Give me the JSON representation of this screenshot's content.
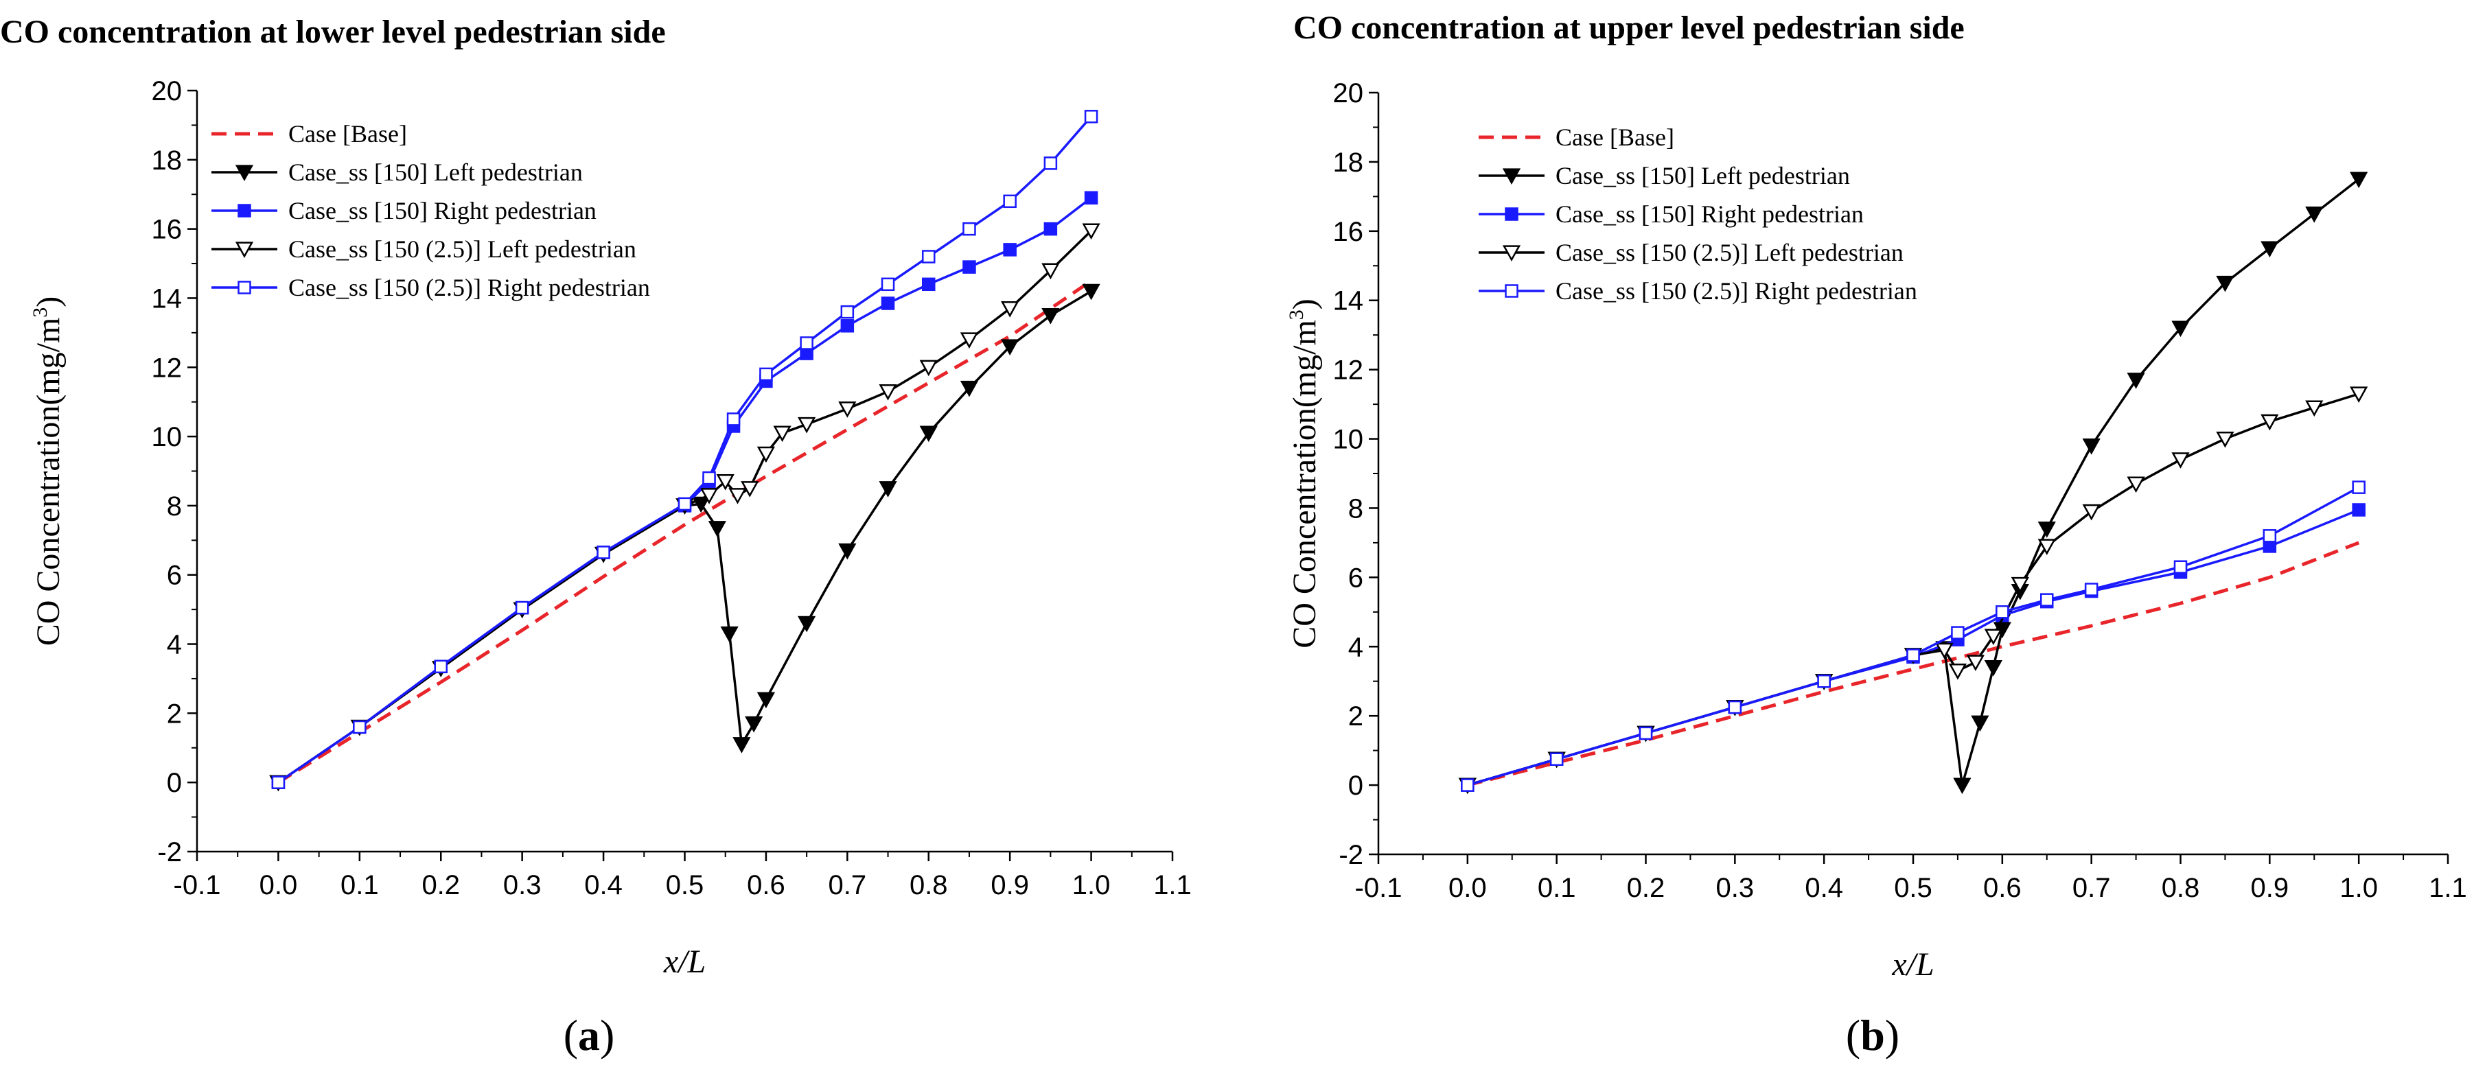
{
  "colors": {
    "base": "#e8252a",
    "black": "#000000",
    "blue": "#1a1aff"
  },
  "chart_data": [
    {
      "id": "a",
      "type": "line",
      "title": "CO concentration at lower level pedestrian side",
      "xlabel": "x/L",
      "ylabel": "CO Concentration(mg/m",
      "ylabel_sup": "3",
      "ylabel_end": ")",
      "caption_open": "(",
      "caption": "a",
      "caption_close": ")",
      "xlim": [
        -0.1,
        1.1
      ],
      "ylim": [
        -2,
        20
      ],
      "xticks": [
        "-0.1",
        "0.0",
        "0.1",
        "0.2",
        "0.3",
        "0.4",
        "0.5",
        "0.6",
        "0.7",
        "0.8",
        "0.9",
        "1.0",
        "1.1"
      ],
      "yticks": [
        "-2",
        "0",
        "2",
        "4",
        "6",
        "8",
        "10",
        "12",
        "14",
        "16",
        "18",
        "20"
      ],
      "legend": "top-left",
      "series": [
        {
          "name": "Case [Base]",
          "color": "base",
          "style": "dashed",
          "marker": "none",
          "points": [
            [
              0,
              0
            ],
            [
              0.1,
              1.45
            ],
            [
              0.2,
              2.9
            ],
            [
              0.3,
              4.4
            ],
            [
              0.4,
              5.95
            ],
            [
              0.5,
              7.45
            ],
            [
              0.6,
              8.85
            ],
            [
              0.7,
              10.2
            ],
            [
              0.8,
              11.55
            ],
            [
              0.9,
              12.9
            ],
            [
              1.0,
              14.5
            ]
          ]
        },
        {
          "name": "Case_ss [150] Left pedestrian",
          "color": "black",
          "style": "solid",
          "marker": "tri-down-filled",
          "points": [
            [
              0,
              0
            ],
            [
              0.1,
              1.6
            ],
            [
              0.2,
              3.3
            ],
            [
              0.3,
              5.0
            ],
            [
              0.4,
              6.6
            ],
            [
              0.5,
              8.0
            ],
            [
              0.52,
              8.05
            ],
            [
              0.54,
              7.35
            ],
            [
              0.555,
              4.3
            ],
            [
              0.57,
              1.1
            ],
            [
              0.585,
              1.7
            ],
            [
              0.6,
              2.4
            ],
            [
              0.65,
              4.6
            ],
            [
              0.7,
              6.7
            ],
            [
              0.75,
              8.5
            ],
            [
              0.8,
              10.1
            ],
            [
              0.85,
              11.4
            ],
            [
              0.9,
              12.6
            ],
            [
              0.95,
              13.5
            ],
            [
              1.0,
              14.2
            ]
          ]
        },
        {
          "name": "Case_ss [150] Right pedestrian",
          "color": "blue",
          "style": "solid",
          "marker": "square-filled",
          "points": [
            [
              0,
              0
            ],
            [
              0.1,
              1.6
            ],
            [
              0.2,
              3.35
            ],
            [
              0.3,
              5.05
            ],
            [
              0.4,
              6.65
            ],
            [
              0.5,
              8.0
            ],
            [
              0.53,
              8.7
            ],
            [
              0.56,
              10.3
            ],
            [
              0.6,
              11.6
            ],
            [
              0.65,
              12.4
            ],
            [
              0.7,
              13.2
            ],
            [
              0.75,
              13.85
            ],
            [
              0.8,
              14.4
            ],
            [
              0.85,
              14.9
            ],
            [
              0.9,
              15.4
            ],
            [
              0.95,
              16.0
            ],
            [
              1.0,
              16.9
            ]
          ]
        },
        {
          "name": "Case_ss [150 (2.5)] Left pedestrian",
          "color": "black",
          "style": "solid",
          "marker": "tri-down-open",
          "points": [
            [
              0,
              0
            ],
            [
              0.1,
              1.6
            ],
            [
              0.2,
              3.3
            ],
            [
              0.3,
              5.0
            ],
            [
              0.4,
              6.6
            ],
            [
              0.5,
              8.0
            ],
            [
              0.53,
              8.3
            ],
            [
              0.55,
              8.7
            ],
            [
              0.565,
              8.3
            ],
            [
              0.58,
              8.5
            ],
            [
              0.6,
              9.5
            ],
            [
              0.62,
              10.1
            ],
            [
              0.65,
              10.35
            ],
            [
              0.7,
              10.8
            ],
            [
              0.75,
              11.3
            ],
            [
              0.8,
              12.0
            ],
            [
              0.85,
              12.8
            ],
            [
              0.9,
              13.7
            ],
            [
              0.95,
              14.8
            ],
            [
              1.0,
              15.95
            ]
          ]
        },
        {
          "name": "Case_ss [150 (2.5)] Right pedestrian",
          "color": "blue",
          "style": "solid",
          "marker": "square-open",
          "points": [
            [
              0,
              0
            ],
            [
              0.1,
              1.6
            ],
            [
              0.2,
              3.35
            ],
            [
              0.3,
              5.05
            ],
            [
              0.4,
              6.65
            ],
            [
              0.5,
              8.05
            ],
            [
              0.53,
              8.8
            ],
            [
              0.56,
              10.5
            ],
            [
              0.6,
              11.8
            ],
            [
              0.65,
              12.7
            ],
            [
              0.7,
              13.6
            ],
            [
              0.75,
              14.4
            ],
            [
              0.8,
              15.2
            ],
            [
              0.85,
              16.0
            ],
            [
              0.9,
              16.8
            ],
            [
              0.95,
              17.9
            ],
            [
              1.0,
              19.25
            ]
          ]
        }
      ]
    },
    {
      "id": "b",
      "type": "line",
      "title": "CO concentration at upper level pedestrian side",
      "xlabel": "x/L",
      "ylabel": "CO Concentration(mg/m",
      "ylabel_sup": "3",
      "ylabel_end": ")",
      "caption_open": "(",
      "caption": "b",
      "caption_close": ")",
      "xlim": [
        -0.1,
        1.1
      ],
      "ylim": [
        -2,
        20
      ],
      "xticks": [
        "-0.1",
        "0.0",
        "0.1",
        "0.2",
        "0.3",
        "0.4",
        "0.5",
        "0.6",
        "0.7",
        "0.8",
        "0.9",
        "1.0",
        "1.1"
      ],
      "yticks": [
        "-2",
        "0",
        "2",
        "4",
        "6",
        "8",
        "10",
        "12",
        "14",
        "16",
        "18",
        "20"
      ],
      "legend": "top-left",
      "series": [
        {
          "name": "Case [Base]",
          "color": "base",
          "style": "dashed",
          "marker": "none",
          "points": [
            [
              0,
              0
            ],
            [
              0.1,
              0.65
            ],
            [
              0.2,
              1.3
            ],
            [
              0.3,
              2.0
            ],
            [
              0.4,
              2.7
            ],
            [
              0.5,
              3.35
            ],
            [
              0.6,
              4.0
            ],
            [
              0.7,
              4.6
            ],
            [
              0.8,
              5.25
            ],
            [
              0.9,
              6.0
            ],
            [
              1.0,
              7.0
            ]
          ]
        },
        {
          "name": "Case_ss [150] Left pedestrian",
          "color": "black",
          "style": "solid",
          "marker": "tri-down-filled",
          "points": [
            [
              0,
              0
            ],
            [
              0.1,
              0.75
            ],
            [
              0.2,
              1.5
            ],
            [
              0.3,
              2.25
            ],
            [
              0.4,
              3.0
            ],
            [
              0.5,
              3.75
            ],
            [
              0.535,
              3.95
            ],
            [
              0.555,
              0.0
            ],
            [
              0.575,
              1.8
            ],
            [
              0.59,
              3.4
            ],
            [
              0.6,
              4.5
            ],
            [
              0.62,
              5.6
            ],
            [
              0.65,
              7.4
            ],
            [
              0.7,
              9.8
            ],
            [
              0.75,
              11.7
            ],
            [
              0.8,
              13.2
            ],
            [
              0.85,
              14.5
            ],
            [
              0.9,
              15.5
            ],
            [
              0.95,
              16.5
            ],
            [
              1.0,
              17.5
            ]
          ]
        },
        {
          "name": "Case_ss [150] Right pedestrian",
          "color": "blue",
          "style": "solid",
          "marker": "square-filled",
          "points": [
            [
              0,
              0
            ],
            [
              0.1,
              0.75
            ],
            [
              0.2,
              1.5
            ],
            [
              0.3,
              2.25
            ],
            [
              0.4,
              3.0
            ],
            [
              0.5,
              3.7
            ],
            [
              0.55,
              4.2
            ],
            [
              0.6,
              4.9
            ],
            [
              0.65,
              5.3
            ],
            [
              0.7,
              5.6
            ],
            [
              0.8,
              6.15
            ],
            [
              0.9,
              6.9
            ],
            [
              1.0,
              7.95
            ]
          ]
        },
        {
          "name": "Case_ss [150 (2.5)] Left pedestrian",
          "color": "black",
          "style": "solid",
          "marker": "tri-down-open",
          "points": [
            [
              0,
              0
            ],
            [
              0.1,
              0.75
            ],
            [
              0.2,
              1.5
            ],
            [
              0.3,
              2.25
            ],
            [
              0.4,
              3.0
            ],
            [
              0.5,
              3.75
            ],
            [
              0.535,
              3.9
            ],
            [
              0.55,
              3.3
            ],
            [
              0.57,
              3.55
            ],
            [
              0.59,
              4.3
            ],
            [
              0.62,
              5.8
            ],
            [
              0.65,
              6.9
            ],
            [
              0.7,
              7.9
            ],
            [
              0.75,
              8.7
            ],
            [
              0.8,
              9.4
            ],
            [
              0.85,
              10.0
            ],
            [
              0.9,
              10.5
            ],
            [
              0.95,
              10.9
            ],
            [
              1.0,
              11.3
            ]
          ]
        },
        {
          "name": "Case_ss [150 (2.5)] Right pedestrian",
          "color": "blue",
          "style": "solid",
          "marker": "square-open",
          "points": [
            [
              0,
              0
            ],
            [
              0.1,
              0.75
            ],
            [
              0.2,
              1.5
            ],
            [
              0.3,
              2.25
            ],
            [
              0.4,
              3.0
            ],
            [
              0.5,
              3.75
            ],
            [
              0.55,
              4.4
            ],
            [
              0.6,
              5.0
            ],
            [
              0.65,
              5.35
            ],
            [
              0.7,
              5.65
            ],
            [
              0.8,
              6.3
            ],
            [
              0.9,
              7.2
            ],
            [
              1.0,
              8.6
            ]
          ]
        }
      ]
    }
  ]
}
